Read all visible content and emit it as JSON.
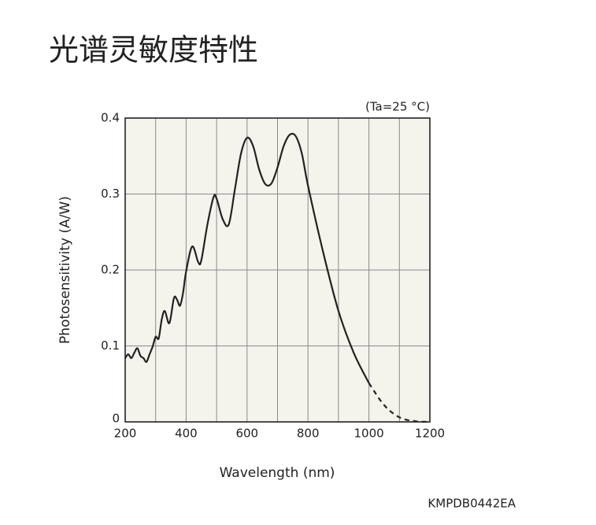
{
  "chart_data": {
    "type": "line",
    "title": "光谱灵敏度特性",
    "annotation": "(Ta=25 °C)",
    "code": "KMPDB0442EA",
    "x_label": "Wavelength (nm)",
    "y_label": "Photosensitivity (A/W)",
    "xlim": [
      200,
      1200
    ],
    "ylim": [
      0,
      0.4
    ],
    "xticks": [
      200,
      400,
      600,
      800,
      1000,
      1200
    ],
    "yticks": [
      0,
      0.1,
      0.2,
      0.3,
      0.4
    ],
    "xgrid": [
      300,
      400,
      500,
      600,
      700,
      800,
      900,
      1000,
      1100
    ],
    "grid": true,
    "background": "#f4f3ec",
    "series": [
      {
        "color": "#222222",
        "dashed": false,
        "x": [
          200,
          210,
          220,
          230,
          240,
          250,
          260,
          270,
          280,
          290,
          300,
          310,
          320,
          330,
          345,
          360,
          370,
          380,
          390,
          400,
          420,
          440,
          450,
          470,
          490,
          500,
          520,
          540,
          560,
          580,
          600,
          620,
          640,
          660,
          680,
          700,
          720,
          740,
          760,
          780,
          800,
          850,
          900,
          950,
          1000
        ],
        "values": [
          0.084,
          0.089,
          0.084,
          0.091,
          0.097,
          0.087,
          0.084,
          0.079,
          0.089,
          0.099,
          0.112,
          0.11,
          0.135,
          0.146,
          0.13,
          0.163,
          0.161,
          0.153,
          0.17,
          0.198,
          0.231,
          0.21,
          0.213,
          0.26,
          0.296,
          0.294,
          0.267,
          0.26,
          0.306,
          0.353,
          0.374,
          0.363,
          0.332,
          0.313,
          0.314,
          0.335,
          0.363,
          0.378,
          0.376,
          0.353,
          0.311,
          0.223,
          0.146,
          0.091,
          0.051
        ]
      },
      {
        "color": "#222222",
        "dashed": true,
        "x": [
          1000,
          1050,
          1100,
          1150,
          1200
        ],
        "values": [
          0.051,
          0.022,
          0.006,
          0.001,
          0
        ]
      }
    ]
  }
}
